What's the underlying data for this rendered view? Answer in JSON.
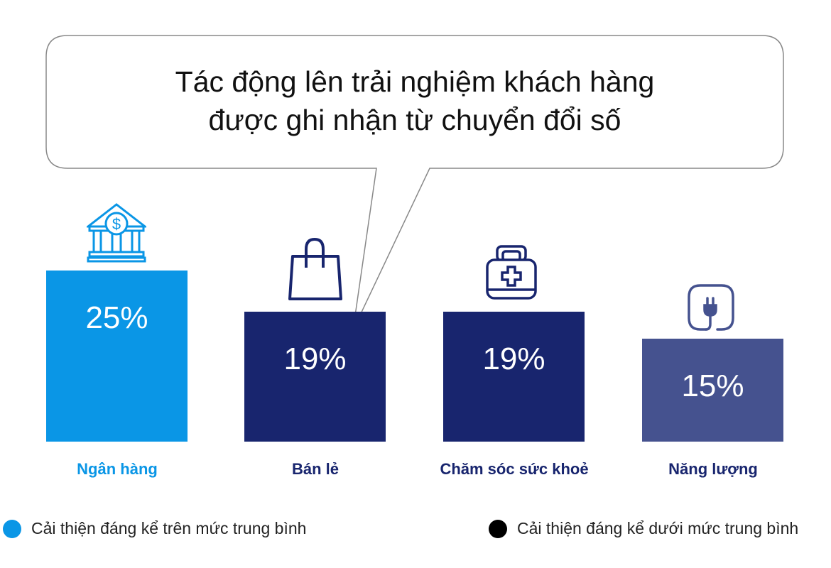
{
  "chart_data": {
    "type": "bar",
    "title_lines": [
      "Tác động lên trải nghiệm khách hàng",
      "được ghi nhận từ chuyển đổi số"
    ],
    "categories": [
      "Ngân hàng",
      "Bán lẻ",
      "Chăm sóc sức khoẻ",
      "Năng lượng"
    ],
    "values": [
      25,
      19,
      19,
      15
    ],
    "value_labels": [
      "25%",
      "19%",
      "19%",
      "15%"
    ],
    "icons": [
      "bank-icon",
      "shopping-bag-icon",
      "medical-kit-icon",
      "plug-icon"
    ],
    "bar_colors": [
      "#0a96e6",
      "#18256e",
      "#18256e",
      "#45528f"
    ],
    "label_colors": [
      "#0a96e6",
      "#18256e",
      "#18256e",
      "#18256e"
    ],
    "legend": [
      {
        "label": "Cải thiện đáng kể trên mức trung bình",
        "color": "#0a96e6"
      },
      {
        "label": "Cải thiện đáng kể dưới mức trung bình",
        "color": "#000000"
      }
    ],
    "grid": false
  }
}
